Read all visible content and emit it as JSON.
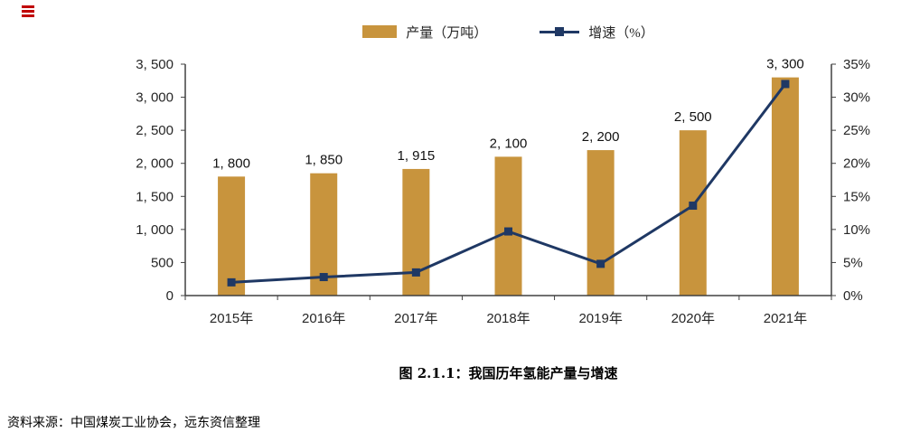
{
  "page": {
    "source": "资料来源：中国煤炭工业协会，远东资信整理"
  },
  "legend": [
    {
      "label": "产量（万吨）",
      "marker": "bar-swatch-icon",
      "color": "#c8943d"
    },
    {
      "label": "增速（%）",
      "marker": "line-swatch-icon",
      "color": "#1f3864"
    }
  ],
  "chart_data": {
    "type": "bar+line",
    "title": "图 2.1.1：我国历年氢能产量与增速",
    "categories": [
      "2015年",
      "2016年",
      "2017年",
      "2018年",
      "2019年",
      "2020年",
      "2021年"
    ],
    "series": [
      {
        "name": "产量（万吨）",
        "type": "bar",
        "axis": "left",
        "color": "#c8943d",
        "values": [
          1800,
          1850,
          1915,
          2100,
          2200,
          2500,
          3300
        ],
        "labels": [
          "1, 800",
          "1, 850",
          "1, 915",
          "2, 100",
          "2, 200",
          "2, 500",
          "3, 300"
        ]
      },
      {
        "name": "增速（%）",
        "type": "line",
        "axis": "right",
        "color": "#1f3864",
        "values": [
          2.0,
          2.8,
          3.5,
          9.7,
          4.8,
          13.6,
          32.0
        ]
      }
    ],
    "left_axis": {
      "min": 0,
      "max": 3500,
      "step": 500,
      "tick_labels": [
        "0",
        "500",
        "1, 000",
        "1, 500",
        "2, 000",
        "2, 500",
        "3, 000",
        "3, 500"
      ]
    },
    "right_axis": {
      "min": 0,
      "max": 35,
      "step": 5,
      "tick_labels": [
        "0%",
        "5%",
        "10%",
        "15%",
        "20%",
        "25%",
        "30%",
        "35%"
      ]
    },
    "grid": false,
    "legend_position": "top"
  }
}
